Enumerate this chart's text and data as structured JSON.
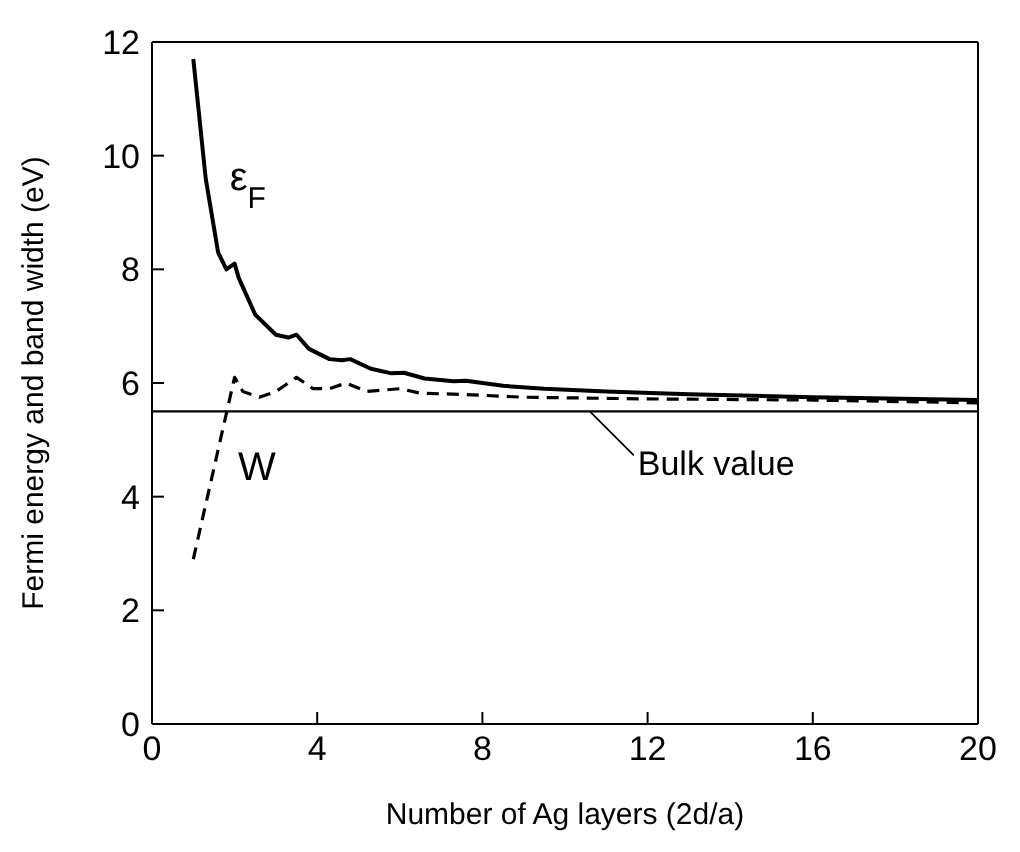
{
  "chart_data": {
    "type": "line",
    "xlabel": "Number of Ag layers (2d/a)",
    "ylabel": "Fermi energy and band width (eV)",
    "xlim": [
      0,
      20
    ],
    "xticks": [
      0,
      4,
      8,
      12,
      16,
      20
    ],
    "ylim": [
      0,
      12
    ],
    "yticks": [
      0,
      2,
      4,
      6,
      8,
      10,
      12
    ],
    "marker": "none",
    "series": [
      {
        "name": "ε$_{F}$",
        "color": "#000000",
        "line_style": "solid",
        "x": [
          1,
          1.3,
          1.6,
          1.8,
          2.0,
          2.1,
          2.5,
          3.0,
          3.3,
          3.5,
          3.8,
          4.3,
          4.6,
          4.8,
          5.3,
          5.8,
          6.1,
          6.6,
          7.3,
          7.6,
          8.5,
          9.5,
          11,
          13,
          16,
          20
        ],
        "values": [
          11.7,
          9.6,
          8.3,
          8.0,
          8.1,
          7.85,
          7.2,
          6.85,
          6.8,
          6.85,
          6.6,
          6.42,
          6.4,
          6.42,
          6.25,
          6.17,
          6.18,
          6.08,
          6.03,
          6.04,
          5.95,
          5.9,
          5.85,
          5.8,
          5.75,
          5.7
        ]
      },
      {
        "name": "W",
        "color": "#000000",
        "line_style": "dashed",
        "x": [
          1,
          1.5,
          2.0,
          2.2,
          2.6,
          3.0,
          3.5,
          3.9,
          4.3,
          4.7,
          5.2,
          6.0,
          6.5,
          7.5,
          9,
          12,
          16,
          20
        ],
        "values": [
          2.9,
          4.5,
          6.1,
          5.85,
          5.75,
          5.85,
          6.1,
          5.9,
          5.9,
          6.0,
          5.85,
          5.9,
          5.82,
          5.8,
          5.75,
          5.72,
          5.7,
          5.65
        ]
      }
    ],
    "ref_lines": [
      {
        "axis": "y",
        "value": 5.5,
        "label": "Bulk value",
        "color": "#000000"
      }
    ]
  }
}
